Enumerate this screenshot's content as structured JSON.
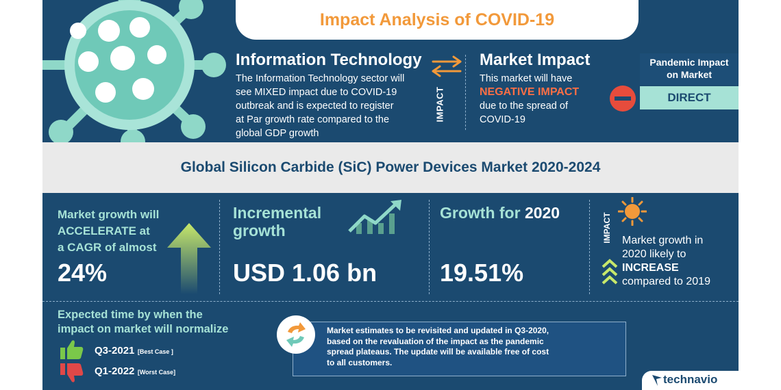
{
  "header": {
    "title": "Impact Analysis of COVID-19"
  },
  "sector": {
    "title": "Information Technology",
    "text_lines": [
      "The Information Technology sector will",
      "see MIXED  impact due to COVID-19",
      "outbreak and is expected to register",
      "at Par growth rate compared to the",
      "global GDP growth"
    ]
  },
  "impact_label": "IMPACT",
  "market_impact": {
    "title": "Market Impact",
    "line1": "This market will have",
    "emphasis": "NEGATIVE IMPACT",
    "line3": "due to the spread of",
    "line4": "COVID-19"
  },
  "pandemic_impact": {
    "label_line1": "Pandemic Impact",
    "label_line2": "on Market",
    "value": "DIRECT"
  },
  "market_title": "Global Silicon Carbide (SiC) Power Devices Market 2020-2024",
  "stats": {
    "cagr": {
      "line1": "Market growth will",
      "line2": "ACCELERATE at",
      "line3": "a CAGR of almost",
      "value": "24%"
    },
    "incremental": {
      "line1": "Incremental",
      "line2": "growth",
      "value": "USD 1.06 bn"
    },
    "growth_2020": {
      "label_prefix": "Growth for ",
      "label_year": "2020",
      "value": "19.51%"
    },
    "impact": {
      "label": "IMPACT",
      "line1": "Market growth in",
      "line2": "2020 likely to",
      "emphasis": "INCREASE",
      "line4": "compared to 2019"
    }
  },
  "normalize": {
    "head_line1": "Expected time by when the",
    "head_line2": "impact on market will normalize",
    "best": {
      "label": "Q3-2021",
      "note": "[Best Case ]"
    },
    "worst": {
      "label": "Q1-2022",
      "note": "[Worst Case]"
    }
  },
  "note": {
    "lines": [
      "Market estimates to be revisited and updated in Q3-2020,",
      "based on the revaluation of the impact as the pandemic",
      "spread plateaus. The update will be available free of cost",
      "to all customers."
    ]
  },
  "brand": {
    "name": "technavio"
  },
  "colors": {
    "background": "#1b4a70",
    "accent_orange": "#f2993a",
    "accent_mint": "#a6e2d6",
    "negative": "#ff6f45",
    "band": "#eaeaea"
  },
  "icons": [
    "virus-icon",
    "swap-arrows-icon",
    "minus-circle-icon",
    "up-arrow-icon",
    "trend-chart-icon",
    "sun-icon",
    "chevron-up-icon",
    "thumbs-up-icon",
    "thumbs-down-icon",
    "refresh-icon",
    "technavio-logo-icon"
  ]
}
